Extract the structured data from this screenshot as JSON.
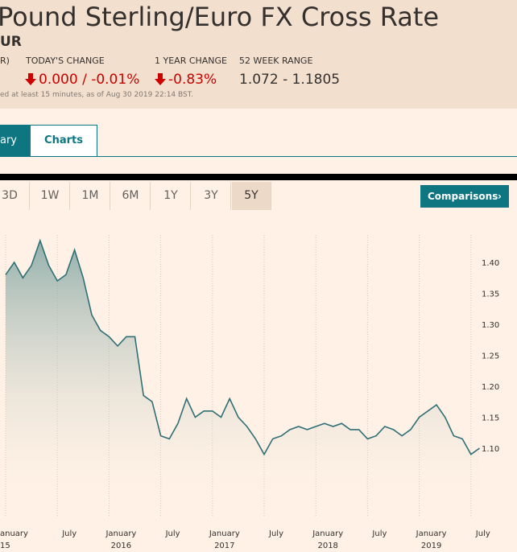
{
  "header": {
    "title": "Pound Sterling/Euro FX Cross Rate",
    "symbol": "UR",
    "stats": [
      {
        "label": "R)"
      },
      {
        "label": "TODAY'S CHANGE",
        "value": "0.000 / -0.01%"
      },
      {
        "label": "1 YEAR CHANGE",
        "value": "-0.83%"
      },
      {
        "label": "52 WEEK RANGE",
        "value": "1.072 - 1.1805"
      }
    ],
    "note": "ed at least 15 minutes, as of Aug 30 2019 22:14 BST."
  },
  "tabs": [
    "ary",
    "Charts"
  ],
  "ranges": [
    "3D",
    "1W",
    "1M",
    "6M",
    "1Y",
    "3Y",
    "5Y"
  ],
  "comparisons": "Comparisons",
  "chart_data": {
    "type": "line",
    "color": "#2f6f77",
    "grid": true,
    "x": [
      "2015-01",
      "2015-02",
      "2015-03",
      "2015-04",
      "2015-05",
      "2015-06",
      "2015-07",
      "2015-08",
      "2015-09",
      "2015-10",
      "2015-11",
      "2015-12",
      "2016-01",
      "2016-02",
      "2016-03",
      "2016-04",
      "2016-05",
      "2016-06",
      "2016-07",
      "2016-08",
      "2016-09",
      "2016-10",
      "2016-11",
      "2016-12",
      "2017-01",
      "2017-02",
      "2017-03",
      "2017-04",
      "2017-05",
      "2017-06",
      "2017-07",
      "2017-08",
      "2017-09",
      "2017-10",
      "2017-11",
      "2017-12",
      "2018-01",
      "2018-02",
      "2018-03",
      "2018-04",
      "2018-05",
      "2018-06",
      "2018-07",
      "2018-08",
      "2018-09",
      "2018-10",
      "2018-11",
      "2018-12",
      "2019-01",
      "2019-02",
      "2019-03",
      "2019-04",
      "2019-05",
      "2019-06",
      "2019-07",
      "2019-08"
    ],
    "values": [
      1.38,
      1.4,
      1.375,
      1.395,
      1.435,
      1.395,
      1.37,
      1.38,
      1.42,
      1.375,
      1.315,
      1.29,
      1.28,
      1.265,
      1.28,
      1.28,
      1.185,
      1.175,
      1.12,
      1.115,
      1.14,
      1.18,
      1.15,
      1.16,
      1.16,
      1.15,
      1.18,
      1.15,
      1.135,
      1.115,
      1.09,
      1.115,
      1.12,
      1.13,
      1.135,
      1.13,
      1.135,
      1.14,
      1.135,
      1.14,
      1.13,
      1.13,
      1.115,
      1.12,
      1.135,
      1.13,
      1.12,
      1.13,
      1.15,
      1.16,
      1.17,
      1.15,
      1.12,
      1.115,
      1.09,
      1.1
    ],
    "ylim": [
      1.0,
      1.45
    ],
    "yticks": [
      {
        "value": 1.1,
        "label": "1.10"
      },
      {
        "value": 1.15,
        "label": "1.15"
      },
      {
        "value": 1.2,
        "label": "1.20"
      },
      {
        "value": 1.25,
        "label": "1.25"
      },
      {
        "value": 1.3,
        "label": "1.30"
      },
      {
        "value": 1.35,
        "label": "1.35"
      },
      {
        "value": 1.4,
        "label": "1.40"
      }
    ],
    "xticks": [
      {
        "value": "2015-01",
        "label": "anuary",
        "year": "15"
      },
      {
        "value": "2015-07",
        "label": "July"
      },
      {
        "value": "2016-01",
        "label": "January",
        "year": "2016"
      },
      {
        "value": "2016-07",
        "label": "July"
      },
      {
        "value": "2017-01",
        "label": "January",
        "year": "2017"
      },
      {
        "value": "2017-07",
        "label": "July"
      },
      {
        "value": "2018-01",
        "label": "January",
        "year": "2018"
      },
      {
        "value": "2018-07",
        "label": "July"
      },
      {
        "value": "2019-01",
        "label": "January",
        "year": "2019"
      },
      {
        "value": "2019-07",
        "label": "July"
      }
    ]
  }
}
